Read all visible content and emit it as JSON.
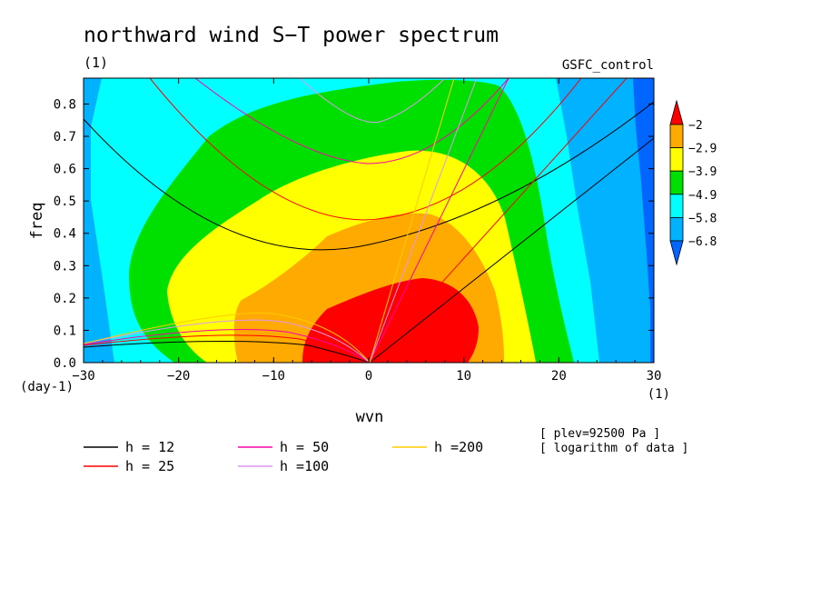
{
  "title": "northward wind S−T power spectrum",
  "units_left": "(1)",
  "run_name": "GSFC_control",
  "xunit": "(1)",
  "yunit": "(day-1)",
  "notes": [
    "[ plev=92500 Pa ]",
    "[ logarithm of data ]"
  ],
  "chart_data": {
    "type": "heatmap",
    "xlabel": "wvn",
    "ylabel": "freq",
    "xlim": [
      -30,
      30
    ],
    "ylim": [
      0,
      0.88
    ],
    "x_ticks": [
      "-30",
      "-20",
      "-10",
      "0",
      "10",
      "20",
      "30"
    ],
    "y_ticks": [
      "0.0",
      "0.1",
      "0.2",
      "0.3",
      "0.4",
      "0.5",
      "0.6",
      "0.7",
      "0.8"
    ],
    "colorbar": {
      "levels": [
        "-2",
        "-2.9",
        "-3.9",
        "-4.9",
        "-5.8",
        "-6.8"
      ],
      "colors": [
        "#0066ff",
        "#00b2ff",
        "#00ffff",
        "#00e000",
        "#ffff00",
        "#ffaa00",
        "#ff0000"
      ]
    },
    "legend": [
      {
        "label": "h = 12",
        "color": "#000000"
      },
      {
        "label": "h = 25",
        "color": "#ff0000"
      },
      {
        "label": "h = 50",
        "color": "#ff00aa"
      },
      {
        "label": "h =100",
        "color": "#dd99ee"
      },
      {
        "label": "h =200",
        "color": "#ffcc00"
      }
    ]
  }
}
